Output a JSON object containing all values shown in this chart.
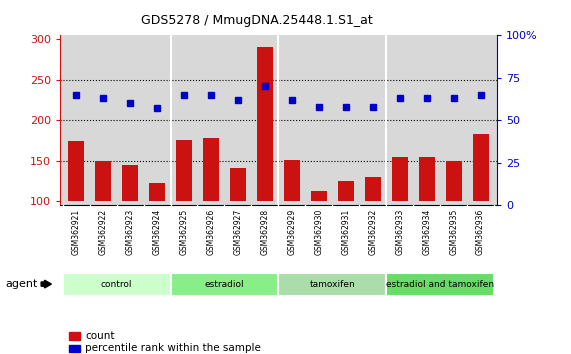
{
  "title": "GDS5278 / MmugDNA.25448.1.S1_at",
  "samples": [
    "GSM362921",
    "GSM362922",
    "GSM362923",
    "GSM362924",
    "GSM362925",
    "GSM362926",
    "GSM362927",
    "GSM362928",
    "GSM362929",
    "GSM362930",
    "GSM362931",
    "GSM362932",
    "GSM362933",
    "GSM362934",
    "GSM362935",
    "GSM362936"
  ],
  "counts": [
    175,
    150,
    145,
    123,
    176,
    178,
    141,
    291,
    151,
    113,
    125,
    130,
    155,
    155,
    150,
    183
  ],
  "perc_values": [
    65,
    63,
    60,
    57,
    65,
    65,
    62,
    70,
    62,
    58,
    58,
    58,
    63,
    63,
    63,
    65
  ],
  "groups": [
    {
      "label": "control",
      "start": 0,
      "end": 4,
      "color": "#ccffcc"
    },
    {
      "label": "estradiol",
      "start": 4,
      "end": 8,
      "color": "#88ee88"
    },
    {
      "label": "tamoxifen",
      "start": 8,
      "end": 12,
      "color": "#aaddaa"
    },
    {
      "label": "estradiol and tamoxifen",
      "start": 12,
      "end": 16,
      "color": "#66dd66"
    }
  ],
  "ylim_left": [
    95,
    305
  ],
  "ylim_right": [
    0,
    100
  ],
  "yticks_left": [
    100,
    150,
    200,
    250,
    300
  ],
  "yticks_right": [
    0,
    25,
    50,
    75,
    100
  ],
  "bar_color": "#cc1111",
  "dot_color": "#0000cc",
  "plot_bg_color": "#d8d8d8",
  "tick_bg_color": "#c0c0c0"
}
